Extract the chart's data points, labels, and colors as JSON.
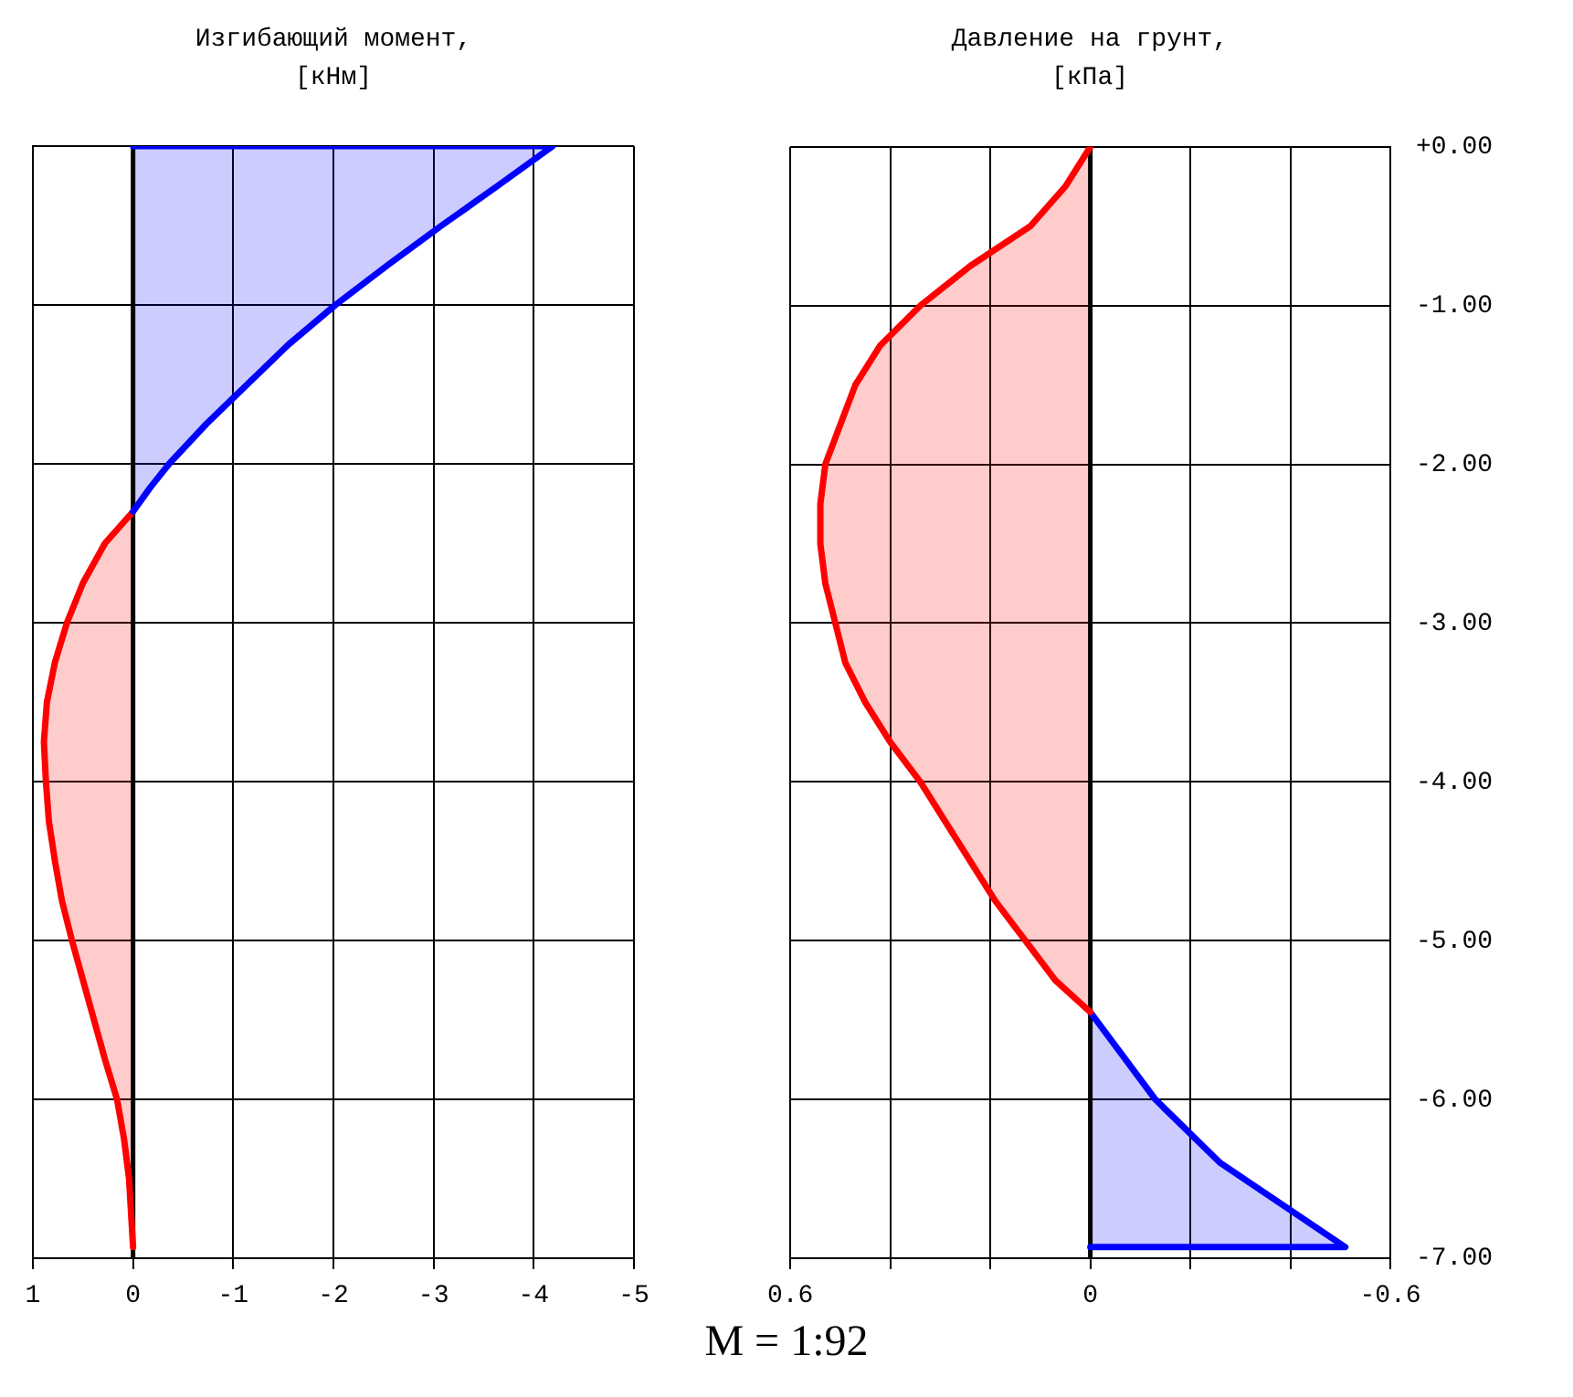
{
  "chart_data": [
    {
      "type": "area",
      "orientation": "horizontal",
      "title": "Изгибающий момент, [кНм]",
      "xlim": [
        1,
        -5
      ],
      "xticks": [
        1,
        0,
        -1,
        -2,
        -3,
        -4,
        -5
      ],
      "ylim": [
        -7,
        0
      ],
      "yticks": [
        {
          "value": 0,
          "label": null
        },
        {
          "value": -1,
          "label": null
        },
        {
          "value": -2,
          "label": null
        },
        {
          "value": -3,
          "label": null
        },
        {
          "value": -4,
          "label": null
        },
        {
          "value": -5,
          "label": null
        },
        {
          "value": -6,
          "label": null
        },
        {
          "value": -7,
          "label": null
        }
      ],
      "grid": true,
      "tick_labels": "x",
      "ref_lines": [
        {
          "axis": "x",
          "value": 0,
          "color": "#000000"
        }
      ],
      "series": [
        {
          "color": "#0000ff",
          "x": [
            0,
            0,
            -0.25,
            -0.5,
            -0.75,
            -1,
            -1.25,
            -1.5,
            -1.75,
            -2,
            -2.15,
            -2.3
          ],
          "values": [
            0,
            -4.19,
            -3.64,
            -3.08,
            -2.54,
            -2.02,
            -1.55,
            -1.14,
            -0.73,
            -0.36,
            -0.17,
            0
          ]
        },
        {
          "color": "#ff0000",
          "x": [
            -2.3,
            -2.5,
            -2.75,
            -3,
            -3.25,
            -3.5,
            -3.75,
            -4,
            -4.25,
            -4.5,
            -4.75,
            -5,
            -5.25,
            -5.5,
            -5.75,
            -6,
            -6.25,
            -6.5,
            -6.93
          ],
          "values": [
            0,
            0.28,
            0.5,
            0.66,
            0.78,
            0.86,
            0.89,
            0.87,
            0.84,
            0.78,
            0.71,
            0.61,
            0.5,
            0.39,
            0.28,
            0.16,
            0.09,
            0.04,
            0
          ]
        }
      ]
    },
    {
      "type": "area",
      "orientation": "horizontal",
      "title": "Давление на грунт, [кПа]",
      "xlim": [
        0.6,
        -0.6
      ],
      "xticks": [
        0.6,
        {
          "value": 0.4,
          "label": null
        },
        {
          "value": 0.2,
          "label": null
        },
        0,
        {
          "value": -0.2,
          "label": null
        },
        {
          "value": -0.4,
          "label": null
        },
        -0.6
      ],
      "ylim": [
        -7,
        0
      ],
      "yticks": [
        {
          "value": 0,
          "label": "+0.00"
        },
        {
          "value": -1,
          "label": "-1.00"
        },
        {
          "value": -2,
          "label": "-2.00"
        },
        {
          "value": -3,
          "label": "-3.00"
        },
        {
          "value": -4,
          "label": "-4.00"
        },
        {
          "value": -5,
          "label": "-5.00"
        },
        {
          "value": -6,
          "label": "-6.00"
        },
        {
          "value": -7,
          "label": "-7.00"
        }
      ],
      "grid": true,
      "ref_lines": [
        {
          "axis": "x",
          "value": 0,
          "color": "#000000"
        }
      ],
      "annotations": [
        "M = 1:92"
      ],
      "series": [
        {
          "color": "#ff0000",
          "x": [
            0,
            -0.25,
            -0.5,
            -0.75,
            -1,
            -1.25,
            -1.5,
            -1.75,
            -2,
            -2.25,
            -2.5,
            -2.75,
            -3,
            -3.25,
            -3.5,
            -3.75,
            -4,
            -4.25,
            -4.5,
            -4.75,
            -5,
            -5.25,
            -5.45
          ],
          "values": [
            0,
            0.05,
            0.12,
            0.24,
            0.34,
            0.42,
            0.47,
            0.5,
            0.53,
            0.54,
            0.54,
            0.53,
            0.51,
            0.49,
            0.45,
            0.4,
            0.34,
            0.29,
            0.24,
            0.19,
            0.13,
            0.07,
            0
          ]
        },
        {
          "color": "#0000ff",
          "x": [
            -5.45,
            -6,
            -6.4,
            -6.93,
            -6.93
          ],
          "values": [
            0,
            -0.13,
            -0.26,
            -0.51,
            0
          ]
        }
      ]
    }
  ]
}
